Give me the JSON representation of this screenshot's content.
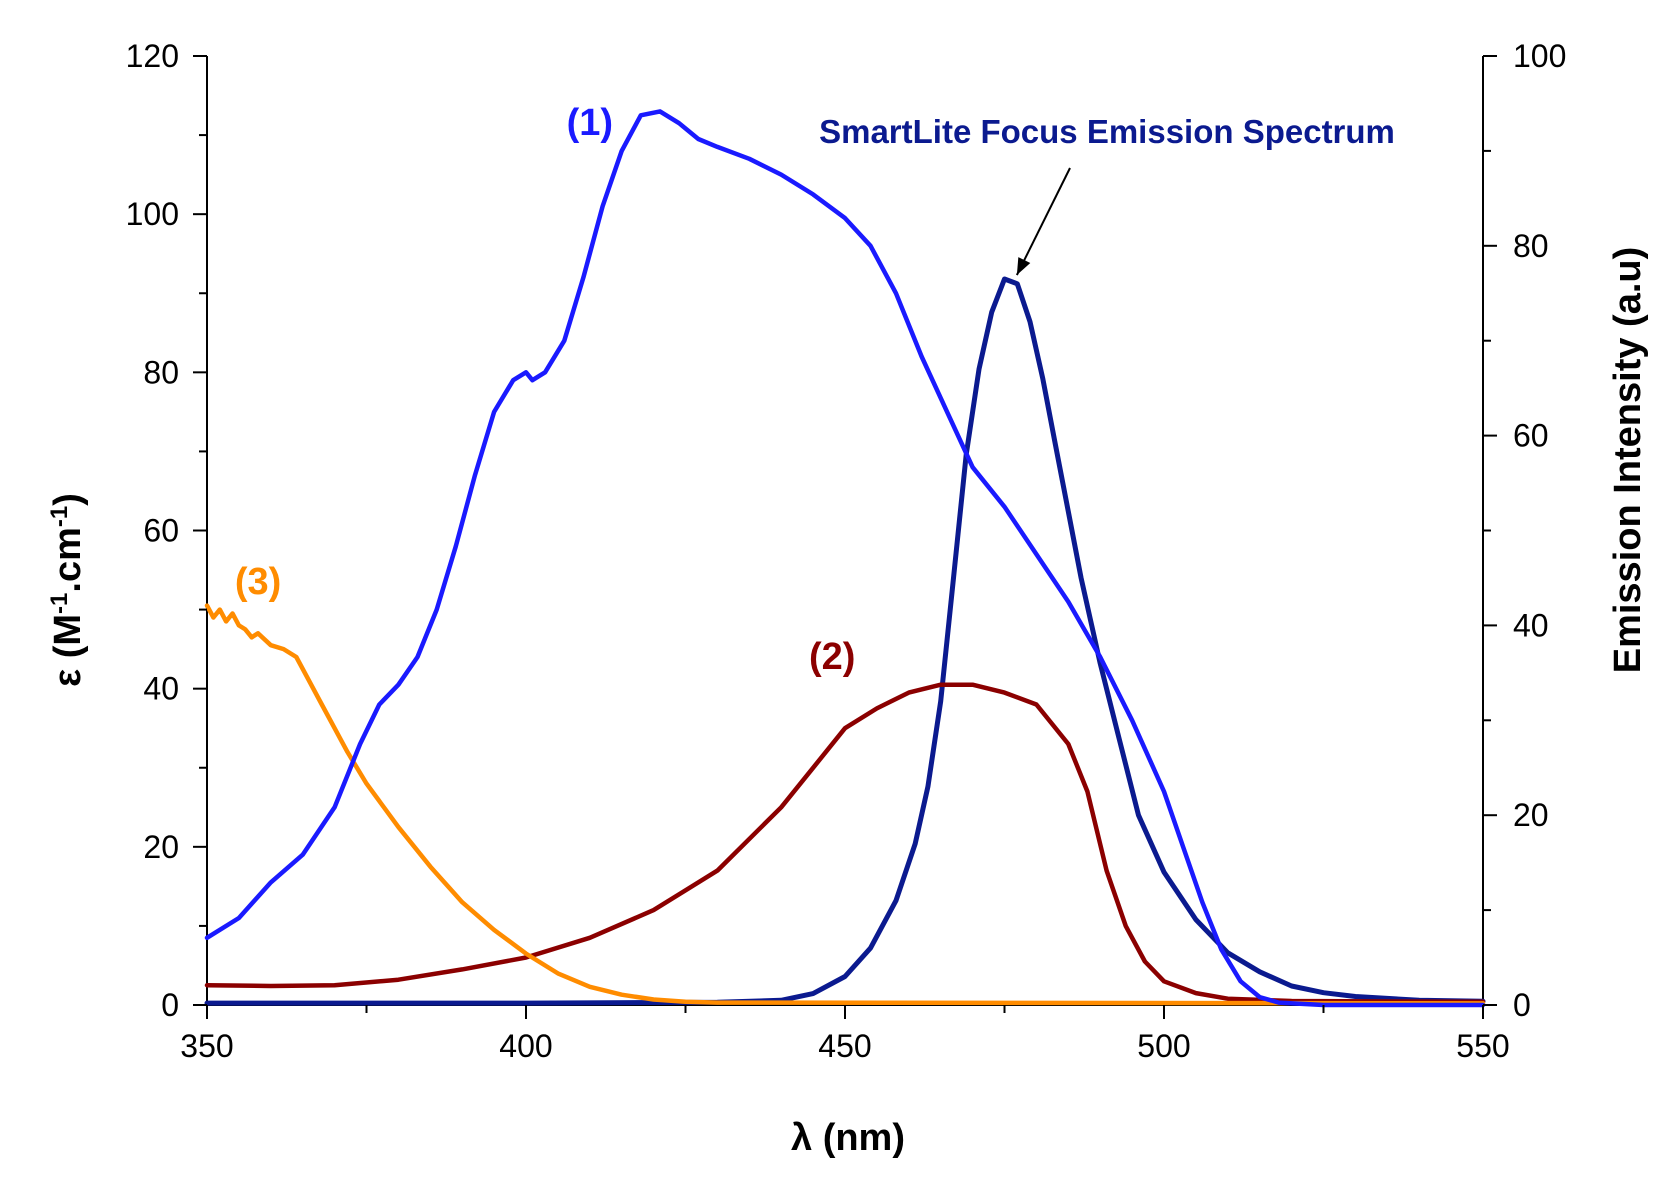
{
  "chart_data": {
    "type": "line",
    "xlabel": "λ (nm)",
    "ylabel_left_prefix": "ε (M",
    "ylabel_left_sup1": "-1",
    "ylabel_left_mid": ".cm",
    "ylabel_left_sup2": "-1",
    "ylabel_left_suffix": ")",
    "ylabel_right": "Emission Intensity (a.u)",
    "xlim": [
      350,
      550
    ],
    "ylim_left": [
      0,
      120
    ],
    "ylim_right": [
      0,
      100
    ],
    "x_ticks": [
      "350",
      "400",
      "450",
      "500",
      "550"
    ],
    "y_left_ticks": [
      "0",
      "20",
      "40",
      "60",
      "80",
      "100",
      "120"
    ],
    "y_right_ticks": [
      "0",
      "20",
      "40",
      "60",
      "80",
      "100"
    ],
    "annotation": {
      "text": "SmartLite Focus Emission Spectrum",
      "color": "#0b1a8f",
      "points_to": {
        "x": 476,
        "y_right": 76.5
      }
    },
    "series": [
      {
        "name": "(1)",
        "color": "#1a1aff",
        "axis": "left",
        "label_at": {
          "x": 410,
          "y": 110
        },
        "points": [
          [
            350,
            8.5
          ],
          [
            355,
            11
          ],
          [
            360,
            15.5
          ],
          [
            365,
            19
          ],
          [
            370,
            25
          ],
          [
            374,
            33
          ],
          [
            377,
            38
          ],
          [
            380,
            40.5
          ],
          [
            383,
            44
          ],
          [
            386,
            50
          ],
          [
            389,
            58
          ],
          [
            392,
            67
          ],
          [
            395,
            75
          ],
          [
            398,
            79
          ],
          [
            400,
            80
          ],
          [
            401,
            79
          ],
          [
            403,
            80
          ],
          [
            406,
            84
          ],
          [
            409,
            92
          ],
          [
            412,
            101
          ],
          [
            415,
            108
          ],
          [
            418,
            112.5
          ],
          [
            421,
            113
          ],
          [
            424,
            111.5
          ],
          [
            427,
            109.5
          ],
          [
            430,
            108.5
          ],
          [
            435,
            107
          ],
          [
            440,
            105
          ],
          [
            445,
            102.5
          ],
          [
            450,
            99.5
          ],
          [
            454,
            96
          ],
          [
            458,
            90
          ],
          [
            462,
            82
          ],
          [
            466,
            75
          ],
          [
            470,
            68
          ],
          [
            475,
            63
          ],
          [
            480,
            57
          ],
          [
            485,
            51
          ],
          [
            490,
            44
          ],
          [
            495,
            36
          ],
          [
            500,
            27
          ],
          [
            503,
            20
          ],
          [
            506,
            13
          ],
          [
            509,
            7
          ],
          [
            512,
            3
          ],
          [
            515,
            1
          ],
          [
            518,
            0.3
          ],
          [
            525,
            0
          ],
          [
            550,
            0
          ]
        ]
      },
      {
        "name": "(2)",
        "color": "#8b0000",
        "axis": "left",
        "label_at": {
          "x": 448,
          "y": 42.5
        },
        "points": [
          [
            350,
            2.5
          ],
          [
            360,
            2.4
          ],
          [
            370,
            2.5
          ],
          [
            380,
            3.2
          ],
          [
            390,
            4.5
          ],
          [
            400,
            6
          ],
          [
            410,
            8.5
          ],
          [
            420,
            12
          ],
          [
            430,
            17
          ],
          [
            440,
            25
          ],
          [
            445,
            30
          ],
          [
            450,
            35
          ],
          [
            455,
            37.5
          ],
          [
            460,
            39.5
          ],
          [
            465,
            40.5
          ],
          [
            470,
            40.5
          ],
          [
            475,
            39.5
          ],
          [
            480,
            38
          ],
          [
            485,
            33
          ],
          [
            488,
            27
          ],
          [
            491,
            17
          ],
          [
            494,
            10
          ],
          [
            497,
            5.5
          ],
          [
            500,
            3
          ],
          [
            505,
            1.5
          ],
          [
            510,
            0.8
          ],
          [
            520,
            0.5
          ],
          [
            550,
            0.4
          ]
        ]
      },
      {
        "name": "(3)",
        "color": "#ff8c00",
        "axis": "left",
        "label_at": {
          "x": 358,
          "y": 52
        },
        "points": [
          [
            350,
            50.5
          ],
          [
            351,
            49
          ],
          [
            352,
            50
          ],
          [
            353,
            48.5
          ],
          [
            354,
            49.5
          ],
          [
            355,
            48
          ],
          [
            356,
            47.5
          ],
          [
            357,
            46.5
          ],
          [
            358,
            47
          ],
          [
            360,
            45.5
          ],
          [
            362,
            45
          ],
          [
            364,
            44
          ],
          [
            366,
            41
          ],
          [
            368,
            38
          ],
          [
            370,
            35
          ],
          [
            372,
            32
          ],
          [
            375,
            28
          ],
          [
            380,
            22.5
          ],
          [
            385,
            17.5
          ],
          [
            390,
            13
          ],
          [
            395,
            9.5
          ],
          [
            400,
            6.5
          ],
          [
            405,
            4
          ],
          [
            410,
            2.3
          ],
          [
            415,
            1.3
          ],
          [
            420,
            0.7
          ],
          [
            425,
            0.4
          ],
          [
            430,
            0.3
          ],
          [
            550,
            0.2
          ]
        ]
      },
      {
        "name": "SmartLite Focus Emission Spectrum",
        "color": "#0b1a8f",
        "axis": "right",
        "points": [
          [
            350,
            0.2
          ],
          [
            400,
            0.2
          ],
          [
            430,
            0.3
          ],
          [
            440,
            0.5
          ],
          [
            445,
            1.2
          ],
          [
            450,
            3
          ],
          [
            454,
            6
          ],
          [
            458,
            11
          ],
          [
            461,
            17
          ],
          [
            463,
            23
          ],
          [
            465,
            32
          ],
          [
            467,
            45
          ],
          [
            469,
            58
          ],
          [
            471,
            67
          ],
          [
            473,
            73
          ],
          [
            475,
            76.5
          ],
          [
            477,
            76
          ],
          [
            479,
            72
          ],
          [
            481,
            66
          ],
          [
            483,
            59
          ],
          [
            485,
            52
          ],
          [
            487,
            45
          ],
          [
            490,
            36
          ],
          [
            493,
            28
          ],
          [
            496,
            20
          ],
          [
            500,
            14
          ],
          [
            505,
            9
          ],
          [
            510,
            5.5
          ],
          [
            515,
            3.5
          ],
          [
            520,
            2
          ],
          [
            525,
            1.3
          ],
          [
            530,
            0.9
          ],
          [
            540,
            0.5
          ],
          [
            550,
            0.4
          ]
        ]
      }
    ]
  }
}
